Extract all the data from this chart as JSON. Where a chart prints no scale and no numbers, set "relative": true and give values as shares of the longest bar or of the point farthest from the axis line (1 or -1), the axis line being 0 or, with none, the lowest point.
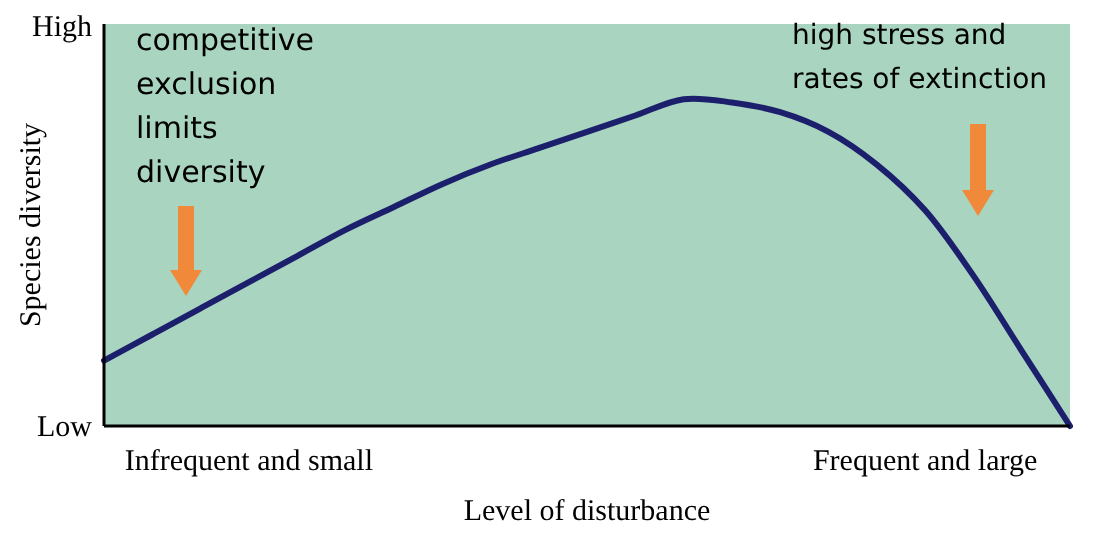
{
  "chart_data": {
    "type": "line",
    "relative": true,
    "xlabel": "Level of disturbance",
    "ylabel": "Species diversity",
    "categories": [
      null,
      null,
      null,
      "Infrequent and small",
      null,
      null,
      null,
      null,
      null,
      null,
      null,
      null,
      null,
      null,
      null,
      null,
      null,
      "Frequent and large",
      null,
      null,
      null
    ],
    "series": [
      {
        "color": "#1c1f6b",
        "values": [
          0.2,
          0.28,
          0.36,
          0.44,
          0.52,
          0.6,
          0.67,
          0.74,
          0.8,
          0.85,
          0.9,
          0.95,
          1,
          0.99,
          0.96,
          0.9,
          0.8,
          0.66,
          0.46,
          0.23,
          0
        ]
      }
    ],
    "annotations": [
      "High",
      "Low",
      "competitive\nexclusion\nlimits\ndiversity",
      "high stress and\nrates of extinction"
    ],
    "marker": "none",
    "line_style": "solid"
  }
}
